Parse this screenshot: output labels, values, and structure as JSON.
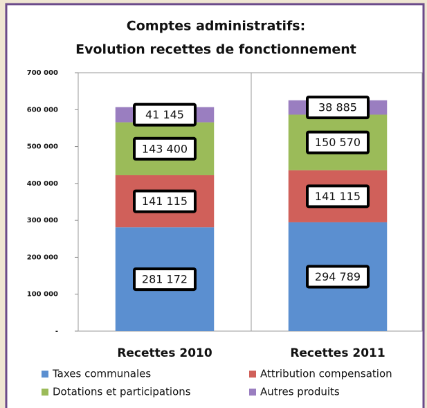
{
  "chart_data": {
    "type": "stacked_bar",
    "title": "Comptes administratifs:",
    "subtitle": "Evolution recettes de fonctionnement",
    "categories": [
      "Recettes 2010",
      "Recettes 2011"
    ],
    "series": [
      {
        "name": "Taxes communales",
        "color": "#5b8fd0",
        "values": [
          281172,
          294789
        ],
        "value_labels": [
          "281 172",
          "294 789"
        ]
      },
      {
        "name": "Attribution compensation",
        "color": "#d0605a",
        "values": [
          141115,
          141115
        ],
        "value_labels": [
          "141 115",
          "141 115"
        ]
      },
      {
        "name": "Dotations et participations",
        "color": "#9bbb59",
        "values": [
          143400,
          150570
        ],
        "value_labels": [
          "143 400",
          "150 570"
        ]
      },
      {
        "name": "Autres produits",
        "color": "#9a7ec0",
        "values": [
          41145,
          38885
        ],
        "value_labels": [
          "41 145",
          "38 885"
        ]
      }
    ],
    "ylim": [
      0,
      700000
    ],
    "yticks": [
      {
        "value": 0,
        "label": "-"
      },
      {
        "value": 100000,
        "label": "100 000"
      },
      {
        "value": 200000,
        "label": "200 000"
      },
      {
        "value": 300000,
        "label": "300 000"
      },
      {
        "value": 400000,
        "label": "400 000"
      },
      {
        "value": 500000,
        "label": "500 000"
      },
      {
        "value": 600000,
        "label": "600 000"
      },
      {
        "value": 700000,
        "label": "700 000"
      }
    ]
  }
}
